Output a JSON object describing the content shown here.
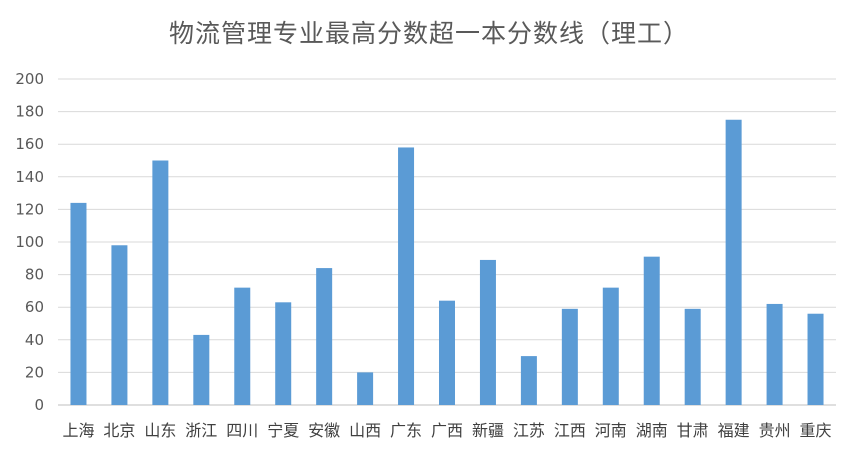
{
  "chart_data": {
    "type": "bar",
    "title": "物流管理专业最高分数超一本分数线（理工）",
    "categories": [
      "上海",
      "北京",
      "山东",
      "浙江",
      "四川",
      "宁夏",
      "安徽",
      "山西",
      "广东",
      "广西",
      "新疆",
      "江苏",
      "江西",
      "河南",
      "湖南",
      "甘肃",
      "福建",
      "贵州",
      "重庆"
    ],
    "values": [
      124,
      98,
      150,
      43,
      72,
      63,
      84,
      20,
      158,
      64,
      89,
      30,
      59,
      72,
      91,
      59,
      175,
      62,
      56
    ],
    "ylim": [
      0,
      200
    ],
    "yticks": [
      "0",
      "20",
      "40",
      "60",
      "80",
      "100",
      "120",
      "140",
      "160",
      "180",
      "200"
    ],
    "grid": true,
    "bar_color": "#5B9BD5",
    "grid_color": "#D9D9D9"
  }
}
